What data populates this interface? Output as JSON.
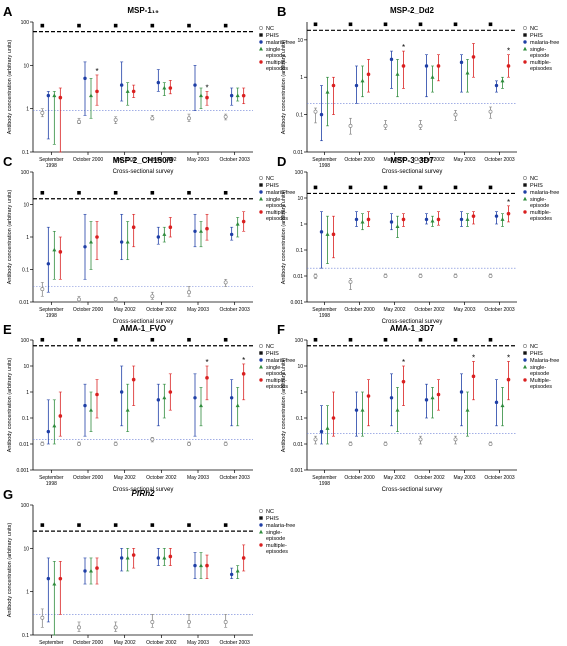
{
  "figure": {
    "axis_xlabel": "Cross-sectional survey",
    "axis_ylabel": "Antibody concentration (arbitrary units)",
    "surveys": [
      "September 1998",
      "October 2000",
      "May 2002",
      "October 2002",
      "May 2003",
      "October 2003"
    ],
    "surveys_short": [
      "September\n1998",
      "October 2000",
      "May 2002",
      "October 2002",
      "May 2003",
      "October 2003"
    ],
    "group_colors": {
      "NC": "#888888",
      "PHIS": "#1f3fa6",
      "malaria-free": "#1f3fa6",
      "single-episode": "#2e8b3c",
      "multiple-episodes": "#d92020"
    }
  },
  "chart_data": [
    {
      "panel": "A",
      "type": "scatter",
      "title": "MSP-1₁₉",
      "yscale": "log",
      "ylim": [
        0.1,
        100
      ],
      "yticks": [
        "0.1",
        "1",
        "10",
        "100"
      ],
      "phis_line": 60,
      "nc_line": 0.9,
      "legend": [
        "NC",
        "PHIS",
        "malaria-free",
        "single-episode",
        "multiple-episodes"
      ],
      "series": [
        {
          "name": "NC",
          "y": [
            0.8,
            0.5,
            0.55,
            0.6,
            0.6,
            0.65
          ],
          "lo": [
            0.65,
            0.45,
            0.45,
            0.55,
            0.5,
            0.55
          ],
          "hi": [
            1.0,
            0.6,
            0.65,
            0.7,
            0.75,
            0.75
          ]
        },
        {
          "name": "malaria-free",
          "y": [
            2.0,
            5.0,
            3.5,
            4.0,
            3.5,
            2.0
          ],
          "lo": [
            0.2,
            0.7,
            1.5,
            2.5,
            0.9,
            1.2
          ],
          "hi": [
            2.5,
            12,
            12,
            8,
            10,
            3
          ]
        },
        {
          "name": "single-episode",
          "y": [
            2.0,
            2.0,
            2.5,
            3.0,
            2.0,
            2.0
          ],
          "lo": [
            0.15,
            0.6,
            1.2,
            2.0,
            1.0,
            1.5
          ],
          "hi": [
            2.5,
            5,
            4,
            4,
            3,
            3
          ]
        },
        {
          "name": "multiple-episodes",
          "y": [
            1.8,
            2.5,
            2.5,
            3.0,
            1.8,
            2.0
          ],
          "lo": [
            0.1,
            1.2,
            1.8,
            2.2,
            1.2,
            1.3
          ],
          "hi": [
            3,
            6,
            3.5,
            4.5,
            2.5,
            3
          ]
        }
      ],
      "stars": [
        1,
        4
      ]
    },
    {
      "panel": "B",
      "type": "scatter",
      "title": "MSP-2_Dd2",
      "yscale": "log",
      "ylim": [
        0.01,
        30
      ],
      "yticks": [
        "0.01",
        "0.1",
        "1",
        "10"
      ],
      "phis_line": 18,
      "nc_line": 0.2,
      "legend": [
        "NC",
        "PHIS",
        "malaria-free",
        "single-episode",
        "multiple-episodes"
      ],
      "series": [
        {
          "name": "NC",
          "y": [
            0.12,
            0.05,
            0.05,
            0.05,
            0.1,
            0.12
          ],
          "lo": [
            0.06,
            0.03,
            0.04,
            0.04,
            0.07,
            0.08
          ],
          "hi": [
            0.15,
            0.08,
            0.07,
            0.07,
            0.13,
            0.16
          ]
        },
        {
          "name": "malaria-free",
          "y": [
            0.1,
            0.6,
            3.0,
            2.0,
            2.5,
            0.6
          ],
          "lo": [
            0.02,
            0.2,
            0.5,
            0.3,
            0.4,
            0.4
          ],
          "hi": [
            0.6,
            2.0,
            5,
            4,
            4,
            0.8
          ]
        },
        {
          "name": "single-episode",
          "y": [
            0.4,
            0.8,
            1.2,
            1.0,
            1.3,
            0.8
          ],
          "lo": [
            0.05,
            0.3,
            0.3,
            0.4,
            0.4,
            0.5
          ],
          "hi": [
            1.0,
            2.0,
            3,
            2,
            3,
            1
          ]
        },
        {
          "name": "multiple-episodes",
          "y": [
            0.6,
            1.2,
            2.0,
            2.0,
            3.5,
            2.0
          ],
          "lo": [
            0.1,
            0.4,
            0.5,
            0.8,
            1.0,
            1.0
          ],
          "hi": [
            1.0,
            3.0,
            5,
            4,
            8,
            4
          ]
        }
      ],
      "stars": [
        2,
        5
      ]
    },
    {
      "panel": "C",
      "type": "scatter",
      "title": "MSP-2_CH150/9",
      "yscale": "log",
      "ylim": [
        0.01,
        100
      ],
      "yticks": [
        "0.01",
        "0.1",
        "1",
        "10",
        "100"
      ],
      "phis_line": 15,
      "nc_line": 0.03,
      "legend": [
        "NC",
        "PHIS",
        "malaria-free",
        "single-episode",
        "multiple-episodes"
      ],
      "series": [
        {
          "name": "NC",
          "y": [
            0.025,
            0.012,
            0.012,
            0.015,
            0.02,
            0.04
          ],
          "lo": [
            0.015,
            0.01,
            0.01,
            0.012,
            0.015,
            0.03
          ],
          "hi": [
            0.04,
            0.015,
            0.014,
            0.02,
            0.03,
            0.05
          ]
        },
        {
          "name": "malaria-free",
          "y": [
            0.15,
            0.5,
            0.7,
            1.0,
            1.5,
            1.2
          ],
          "lo": [
            0.02,
            0.05,
            0.2,
            0.6,
            0.5,
            0.8
          ],
          "hi": [
            2.0,
            5.0,
            5.0,
            2.0,
            5.0,
            2.0
          ]
        },
        {
          "name": "single-episode",
          "y": [
            0.4,
            0.7,
            0.7,
            1.2,
            1.5,
            2.5
          ],
          "lo": [
            0.05,
            0.1,
            0.2,
            0.7,
            0.5,
            1.0
          ],
          "hi": [
            1.5,
            3.0,
            3.0,
            2.0,
            3.0,
            4.0
          ]
        },
        {
          "name": "multiple-episodes",
          "y": [
            0.35,
            1.0,
            2.0,
            2.0,
            1.8,
            3.0
          ],
          "lo": [
            0.05,
            0.2,
            0.5,
            1.0,
            0.8,
            1.5
          ],
          "hi": [
            1.0,
            3.0,
            5.0,
            4.0,
            5.0,
            6.0
          ]
        }
      ],
      "stars": []
    },
    {
      "panel": "D",
      "type": "scatter",
      "title": "MSP-3_3D7",
      "yscale": "log",
      "ylim": [
        0.001,
        100
      ],
      "yticks": [
        "0.001",
        "0.01",
        "0.1",
        "1",
        "10",
        "100"
      ],
      "phis_line": 15,
      "nc_line": 0.02,
      "legend": [
        "NC",
        "PHIS",
        "malaria-free",
        "single-episode",
        "multiple-episodes"
      ],
      "series": [
        {
          "name": "NC",
          "y": [
            0.01,
            0.006,
            0.01,
            0.01,
            0.01,
            0.01
          ],
          "lo": [
            0.008,
            0.003,
            0.009,
            0.009,
            0.009,
            0.009
          ],
          "hi": [
            0.012,
            0.008,
            0.012,
            0.012,
            0.012,
            0.012
          ]
        },
        {
          "name": "malaria-free",
          "y": [
            0.5,
            1.5,
            1.2,
            1.5,
            1.5,
            2.0
          ],
          "lo": [
            0.02,
            0.8,
            0.6,
            1.0,
            0.8,
            1.0
          ],
          "hi": [
            3.0,
            3.0,
            2.5,
            2.5,
            3.0,
            3.0
          ]
        },
        {
          "name": "single-episode",
          "y": [
            0.4,
            1.2,
            0.8,
            1.3,
            1.5,
            1.5
          ],
          "lo": [
            0.03,
            0.6,
            0.3,
            0.8,
            0.8,
            0.8
          ],
          "hi": [
            2.0,
            2.5,
            2.0,
            2.0,
            2.5,
            2.5
          ]
        },
        {
          "name": "multiple-episodes",
          "y": [
            0.4,
            1.5,
            1.5,
            1.5,
            2.0,
            2.5
          ],
          "lo": [
            0.05,
            0.8,
            0.8,
            0.9,
            1.0,
            1.2
          ],
          "hi": [
            2.0,
            3.0,
            2.5,
            3.0,
            3.0,
            5.0
          ]
        }
      ],
      "stars": [
        5
      ]
    },
    {
      "panel": "E",
      "type": "scatter",
      "title": "AMA-1_FVO",
      "yscale": "log",
      "ylim": [
        0.001,
        100
      ],
      "yticks": [
        "0.001",
        "0.01",
        "0.1",
        "1",
        "10",
        "100"
      ],
      "phis_line": 60,
      "nc_line": 0.015,
      "legend": [
        "NC",
        "PHIS",
        "malaria-free",
        "single-episode",
        "multiple-episodes"
      ],
      "series": [
        {
          "name": "NC",
          "y": [
            0.01,
            0.01,
            0.01,
            0.015,
            0.01,
            0.01
          ],
          "lo": [
            0.009,
            0.009,
            0.009,
            0.012,
            0.009,
            0.009
          ],
          "hi": [
            0.012,
            0.012,
            0.012,
            0.018,
            0.012,
            0.012
          ]
        },
        {
          "name": "malaria-free",
          "y": [
            0.03,
            0.3,
            1.0,
            0.5,
            0.6,
            0.6
          ],
          "lo": [
            0.01,
            0.02,
            0.05,
            0.05,
            0.02,
            0.05
          ],
          "hi": [
            0.5,
            2.0,
            10,
            2,
            5,
            3
          ]
        },
        {
          "name": "single-episode",
          "y": [
            0.05,
            0.2,
            0.2,
            0.6,
            0.3,
            0.3
          ],
          "lo": [
            0.01,
            0.03,
            0.03,
            0.1,
            0.05,
            0.05
          ],
          "hi": [
            0.5,
            1.0,
            2.0,
            2.0,
            1.5,
            1.5
          ]
        },
        {
          "name": "multiple-episodes",
          "y": [
            0.12,
            0.8,
            3.0,
            1.0,
            3.5,
            5.0
          ],
          "lo": [
            0.02,
            0.1,
            0.3,
            0.2,
            0.5,
            0.5
          ],
          "hi": [
            1.0,
            3.0,
            10,
            5,
            10,
            12
          ]
        }
      ],
      "stars": [
        4,
        5
      ]
    },
    {
      "panel": "F",
      "type": "scatter",
      "title": "AMA-1_3D7",
      "yscale": "log",
      "ylim": [
        0.001,
        100
      ],
      "yticks": [
        "0.001",
        "0.01",
        "0.1",
        "1",
        "10",
        "100"
      ],
      "phis_line": 60,
      "nc_line": 0.025,
      "legend": [
        "NC",
        "PHIS",
        "Malaria-free",
        "single-episode",
        "Multiple-episodes"
      ],
      "series": [
        {
          "name": "NC",
          "y": [
            0.015,
            0.01,
            0.01,
            0.015,
            0.015,
            0.01
          ],
          "lo": [
            0.01,
            0.009,
            0.009,
            0.01,
            0.01,
            0.009
          ],
          "hi": [
            0.02,
            0.012,
            0.012,
            0.02,
            0.02,
            0.012
          ]
        },
        {
          "name": "Malaria-free",
          "y": [
            0.03,
            0.2,
            0.6,
            0.5,
            1.0,
            0.4
          ],
          "lo": [
            0.01,
            0.02,
            0.05,
            0.1,
            0.05,
            0.05
          ],
          "hi": [
            0.3,
            1.0,
            5,
            2,
            5,
            3
          ]
        },
        {
          "name": "single-episode",
          "y": [
            0.04,
            0.2,
            0.2,
            0.6,
            0.2,
            0.3
          ],
          "lo": [
            0.01,
            0.02,
            0.03,
            0.1,
            0.02,
            0.05
          ],
          "hi": [
            0.3,
            1.0,
            1.5,
            1.5,
            1.0,
            1.5
          ]
        },
        {
          "name": "Multiple-episodes",
          "y": [
            0.1,
            0.7,
            2.5,
            0.8,
            4.0,
            3.0
          ],
          "lo": [
            0.02,
            0.05,
            0.3,
            0.2,
            0.5,
            0.5
          ],
          "hi": [
            1.0,
            3.0,
            10,
            3,
            15,
            15
          ]
        }
      ],
      "stars": [
        2,
        4,
        5
      ]
    },
    {
      "panel": "G",
      "type": "scatter",
      "title": "PfRh2",
      "yscale": "log",
      "ylim": [
        0.1,
        100
      ],
      "yticks": [
        "0.1",
        "1",
        "10",
        "100"
      ],
      "phis_line": 25,
      "nc_line": 0.3,
      "legend": [
        "NC",
        "PHIS",
        "malaria-free",
        "single-episode",
        "multiple-episodes"
      ],
      "series": [
        {
          "name": "NC",
          "y": [
            0.25,
            0.15,
            0.15,
            0.2,
            0.2,
            0.2
          ],
          "lo": [
            0.15,
            0.12,
            0.12,
            0.15,
            0.15,
            0.15
          ],
          "hi": [
            0.4,
            0.2,
            0.2,
            0.3,
            0.3,
            0.3
          ]
        },
        {
          "name": "malaria-free",
          "y": [
            2.0,
            3.0,
            6.0,
            6.0,
            4.0,
            2.5
          ],
          "lo": [
            0.2,
            1.5,
            3.0,
            4.0,
            2.0,
            2.0
          ],
          "hi": [
            6.0,
            6.0,
            10,
            10,
            8,
            3.5
          ]
        },
        {
          "name": "single-episode",
          "y": [
            1.5,
            3.0,
            6.0,
            6.0,
            4.0,
            3.0
          ],
          "lo": [
            0.1,
            1.5,
            3.0,
            4.0,
            2.0,
            2.0
          ],
          "hi": [
            5.0,
            6.0,
            10,
            10,
            8,
            4
          ]
        },
        {
          "name": "multiple-episodes",
          "y": [
            2.0,
            3.5,
            7.0,
            6.5,
            4.0,
            6.0
          ],
          "lo": [
            0.3,
            1.5,
            3.5,
            4.0,
            2.0,
            3.0
          ],
          "hi": [
            5.0,
            6.0,
            10,
            10,
            7,
            12
          ]
        }
      ],
      "stars": []
    }
  ]
}
